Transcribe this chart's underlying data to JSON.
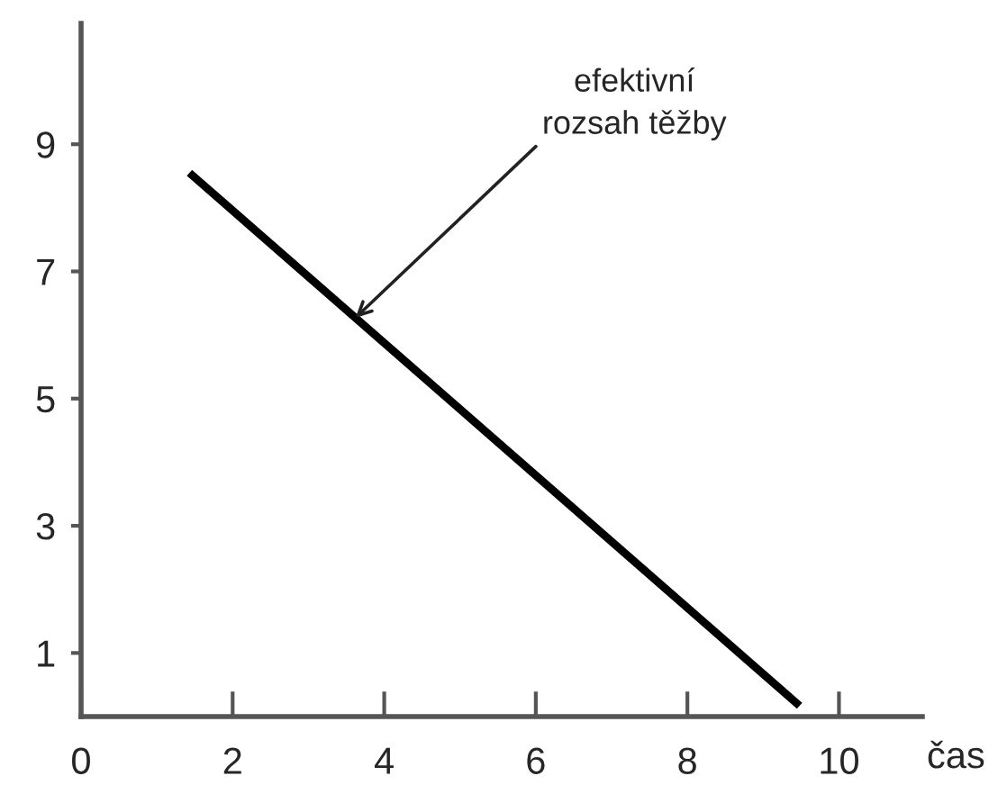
{
  "chart_data": {
    "type": "line",
    "xlabel": "čas",
    "x": [
      1.43,
      9.48
    ],
    "series": [
      {
        "color": "#000000",
        "values": [
          8.55,
          0.17
        ]
      }
    ],
    "xlim": [
      0,
      11.1
    ],
    "ylim": [
      0,
      10.9
    ],
    "xticks": [
      0,
      2,
      4,
      6,
      8,
      10
    ],
    "yticks": [
      1,
      3,
      5,
      7,
      9
    ],
    "annotations": [
      {
        "text": "efektivní\nrozsah těžby",
        "x": 3.62,
        "y": 6.27
      }
    ],
    "grid": false,
    "legend": false,
    "marker": "none",
    "line_style": "solid"
  }
}
